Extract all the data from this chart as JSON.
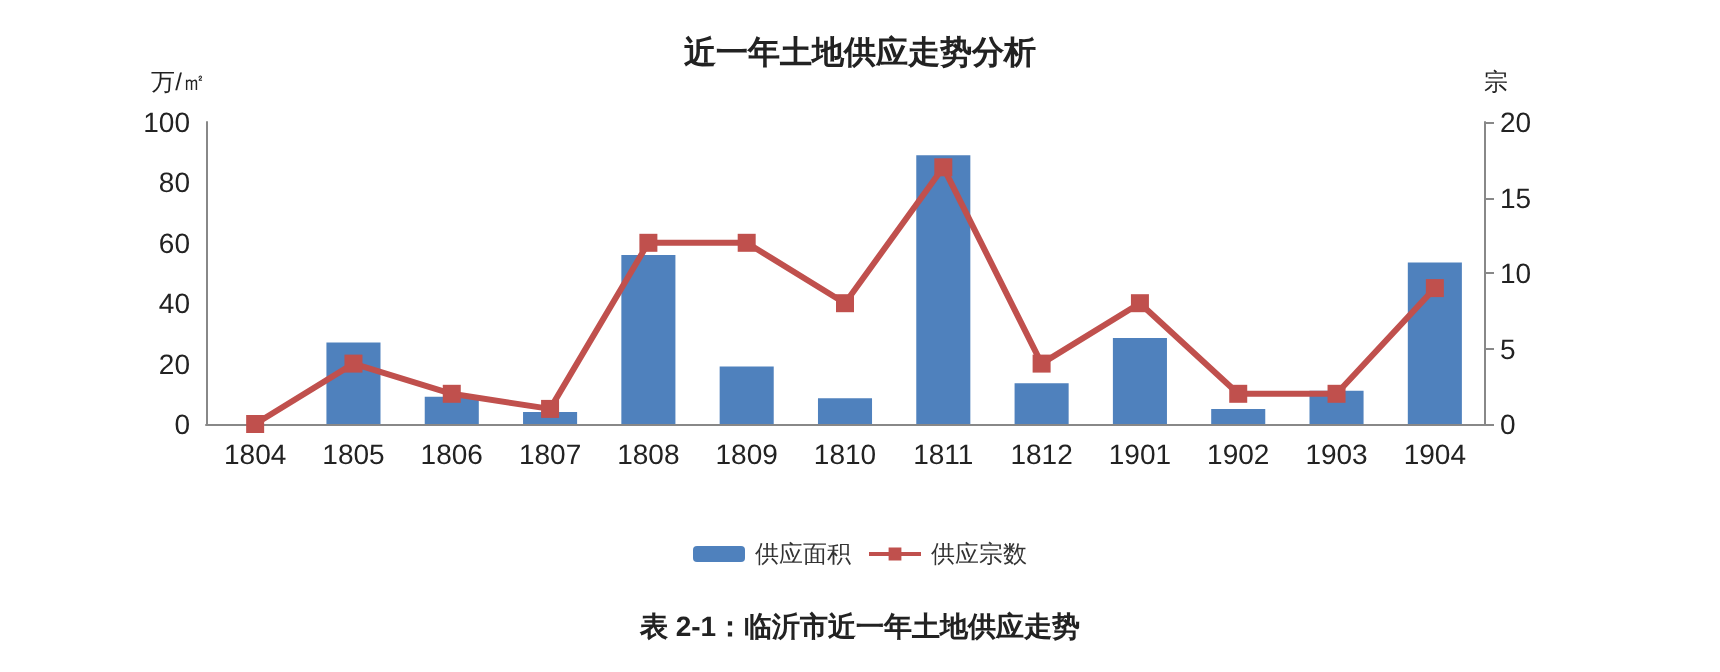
{
  "chart_data": {
    "type": "bar",
    "title": "近一年土地供应走势分析",
    "ylabel": "万/㎡",
    "y2label": "宗",
    "categories": [
      "1804",
      "1805",
      "1806",
      "1807",
      "1808",
      "1809",
      "1810",
      "1811",
      "1812",
      "1901",
      "1902",
      "1903",
      "1904"
    ],
    "series": [
      {
        "name": "供应面积",
        "color": "#4f81bd",
        "values": [
          0,
          27,
          9,
          4,
          56,
          19,
          8.5,
          89,
          13.5,
          28.5,
          5,
          11,
          53.5
        ]
      },
      {
        "name": "供应宗数",
        "type": "line",
        "axis": "y2",
        "color": "#c0504d",
        "marker": "square",
        "values": [
          0,
          4,
          2,
          1,
          12,
          12,
          8,
          17,
          4,
          8,
          2,
          2,
          9
        ]
      }
    ],
    "ylim": [
      0,
      100
    ],
    "yticks": [
      0,
      20,
      40,
      60,
      80,
      100
    ],
    "y2lim": [
      0,
      20
    ],
    "y2ticks": [
      0,
      5,
      10,
      15,
      20
    ],
    "grid": false,
    "legend": "bottom",
    "annotations": [
      "表 2-1：临沂市近一年土地供应走势"
    ]
  }
}
